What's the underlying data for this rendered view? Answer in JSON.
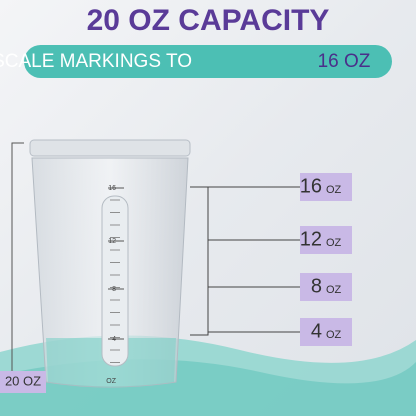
{
  "header": {
    "title": "20 OZ CAPACITY",
    "subtitle": "GRADUATED SCALE MARKINGS TO",
    "subtitle_highlight": "16 OZ"
  },
  "side_label": "20 OZ",
  "callouts": [
    {
      "number": "16",
      "unit": "OZ"
    },
    {
      "number": "12",
      "unit": "OZ"
    },
    {
      "number": "8",
      "unit": "OZ"
    },
    {
      "number": "4",
      "unit": "OZ"
    }
  ],
  "cup_markings": [
    "16",
    "12",
    "8",
    "4",
    "OZ"
  ]
}
